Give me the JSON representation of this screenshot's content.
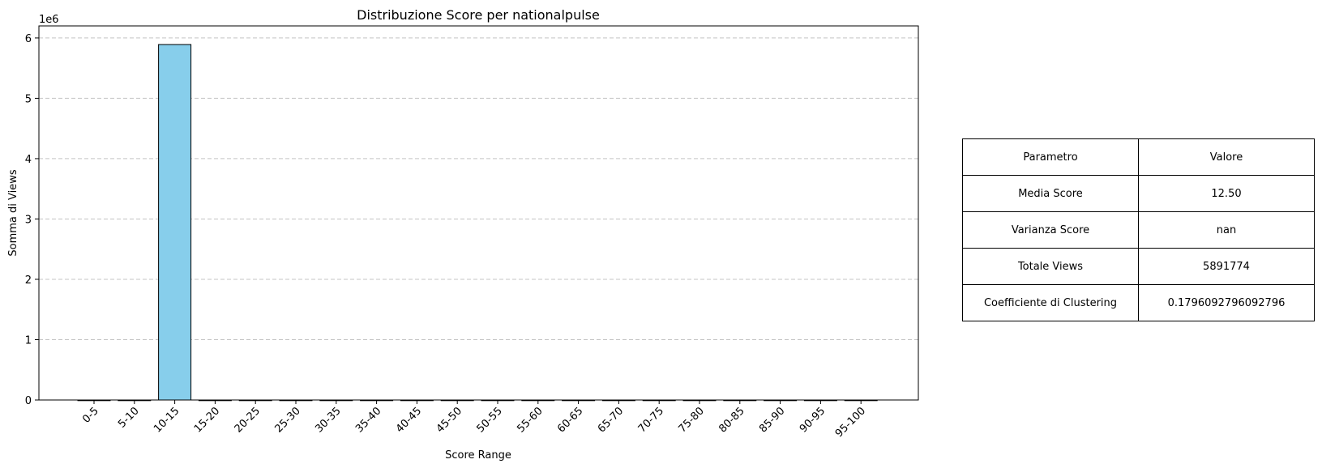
{
  "chart_data": {
    "type": "bar",
    "title": "Distribuzione Score per nationalpulse",
    "xlabel": "Score Range",
    "ylabel": "Somma di Views",
    "offset_label": "1e6",
    "categories": [
      "0-5",
      "5-10",
      "10-15",
      "15-20",
      "20-25",
      "25-30",
      "30-35",
      "35-40",
      "40-45",
      "45-50",
      "50-55",
      "55-60",
      "60-65",
      "65-70",
      "70-75",
      "75-80",
      "80-85",
      "85-90",
      "90-95",
      "95-100"
    ],
    "values": [
      0,
      0,
      5891774,
      0,
      0,
      0,
      0,
      0,
      0,
      0,
      0,
      0,
      0,
      0,
      0,
      0,
      0,
      0,
      0,
      0
    ],
    "ylim": [
      0,
      6200000
    ],
    "yticks": [
      0,
      1000000,
      2000000,
      3000000,
      4000000,
      5000000,
      6000000
    ],
    "ytick_labels": [
      "0",
      "1",
      "2",
      "3",
      "4",
      "5",
      "6"
    ],
    "grid": "y-dashed",
    "colors": {
      "bar_fill": "#87ceeb",
      "bar_edge": "#000000",
      "grid": "#c4c4c4"
    }
  },
  "table": {
    "header": [
      "Parametro",
      "Valore"
    ],
    "rows": [
      [
        "Media Score",
        "12.50"
      ],
      [
        "Varianza Score",
        "nan"
      ],
      [
        "Totale Views",
        "5891774"
      ],
      [
        "Coefficiente di Clustering",
        "0.1796092796092796"
      ]
    ]
  }
}
